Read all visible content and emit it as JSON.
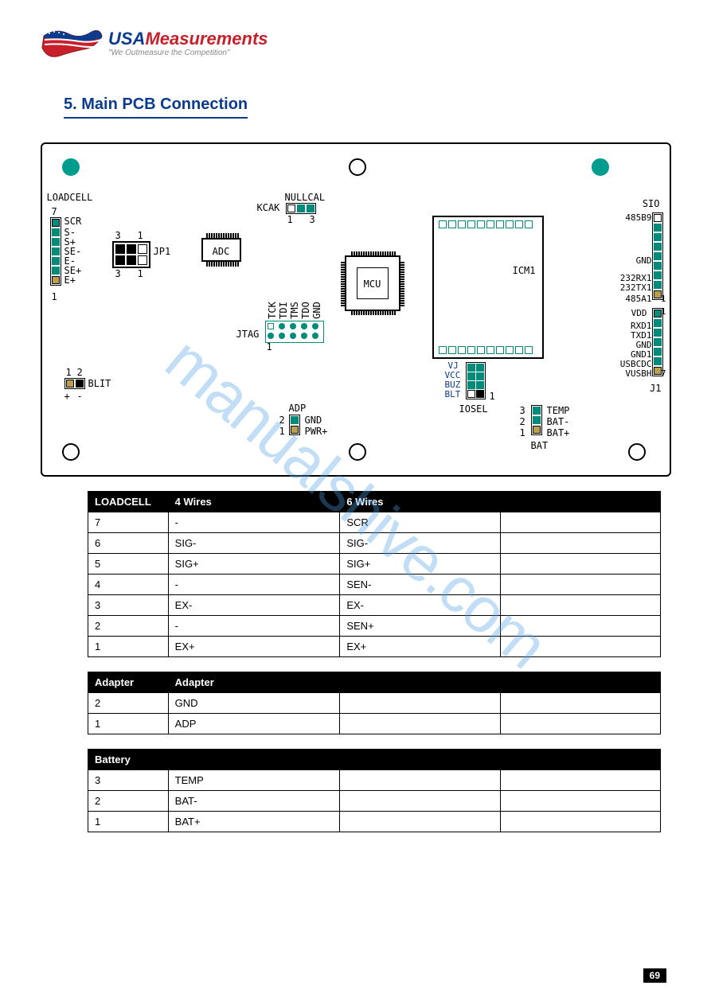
{
  "brand": {
    "usa": "USA",
    "measurements": "Measurements",
    "tagline": "\"We Outmeasure the Competition\""
  },
  "section_title": "5. Main PCB Connection",
  "pcb": {
    "labels": {
      "loadcell": "LOADCELL",
      "scr": "SCR",
      "s_minus": "S-",
      "s_plus": "S+",
      "se_minus": "SE-",
      "e_minus": "E-",
      "se_plus": "SE+",
      "e_plus": "E+",
      "pin7": "7",
      "pin1": "1",
      "jp1": "JP1",
      "jp1_3t": "3",
      "jp1_1t": "1",
      "jp1_3b": "3",
      "jp1_1b": "1",
      "adc": "ADC",
      "nullcal": "NULLCAL",
      "kcak": "KCAK",
      "kcak1": "1",
      "kcak3": "3",
      "mcu": "MCU",
      "jtag": "JTAG",
      "jtag1": "1",
      "jtag_tck": "TCK",
      "jtag_tdi": "TDI",
      "jtag_tms": "TMS",
      "jtag_tdo": "TDO",
      "jtag_gnd": "GND",
      "icm1": "ICM1",
      "vj": "VJ",
      "vcc": "VCC",
      "buz": "BUZ",
      "blt_ic": "BLT",
      "iosel": "IOSEL",
      "iosel1": "1",
      "blit": "BLIT",
      "blit1": "1",
      "blit2": "2",
      "blit_plus": "+",
      "blit_minus": "-",
      "adp": "ADP",
      "adp1": "1",
      "adp2": "2",
      "gnd_adp": "GND",
      "pwr": "PWR+",
      "bat": "BAT",
      "bat1": "1",
      "bat2": "2",
      "bat3": "3",
      "temp": "TEMP",
      "bat_minus": "BAT-",
      "bat_plus": "BAT+",
      "sio": "SIO",
      "b485b9": "485B9",
      "gnd_sio": "GND",
      "r232rx": "232RX1",
      "r232tx": "232TX1",
      "a485a1": "485A1",
      "vdd": "VDD",
      "rxd1": "RXD1",
      "txd1": "TXD1",
      "gnd_j1a": "GND",
      "gnd_j1b": "GND1",
      "usbcdc": "USBCDC",
      "vusbh": "VUSBH",
      "j1": "J1",
      "j1_7": "7",
      "j1_1": "1",
      "sio1": "1"
    }
  },
  "tables": [
    {
      "headers": [
        "LOADCELL",
        "4 Wires",
        "6 Wires",
        ""
      ],
      "rows": [
        [
          "7",
          "-",
          "SCR",
          ""
        ],
        [
          "6",
          "SIG-",
          "SIG-",
          ""
        ],
        [
          "5",
          "SIG+",
          "SIG+",
          ""
        ],
        [
          "4",
          "-",
          "SEN-",
          ""
        ],
        [
          "3",
          "EX-",
          "EX-",
          ""
        ],
        [
          "2",
          "-",
          "SEN+",
          ""
        ],
        [
          "1",
          "EX+",
          "EX+",
          ""
        ]
      ]
    },
    {
      "headers": [
        "Adapter",
        "Adapter",
        "",
        ""
      ],
      "rows": [
        [
          "2",
          "GND",
          "",
          ""
        ],
        [
          "1",
          "ADP",
          "",
          ""
        ]
      ]
    },
    {
      "headers": [
        "Battery",
        "",
        "",
        ""
      ],
      "rows": [
        [
          "3",
          "TEMP",
          "",
          ""
        ],
        [
          "2",
          "BAT-",
          "",
          ""
        ],
        [
          "1",
          "BAT+",
          "",
          ""
        ]
      ]
    }
  ],
  "page_number": "69",
  "watermark": "manualshive.com",
  "colors": {
    "teal": "#009d8e",
    "navy": "#0a3b8f",
    "red": "#c8202a",
    "gold": "#b8a050"
  }
}
